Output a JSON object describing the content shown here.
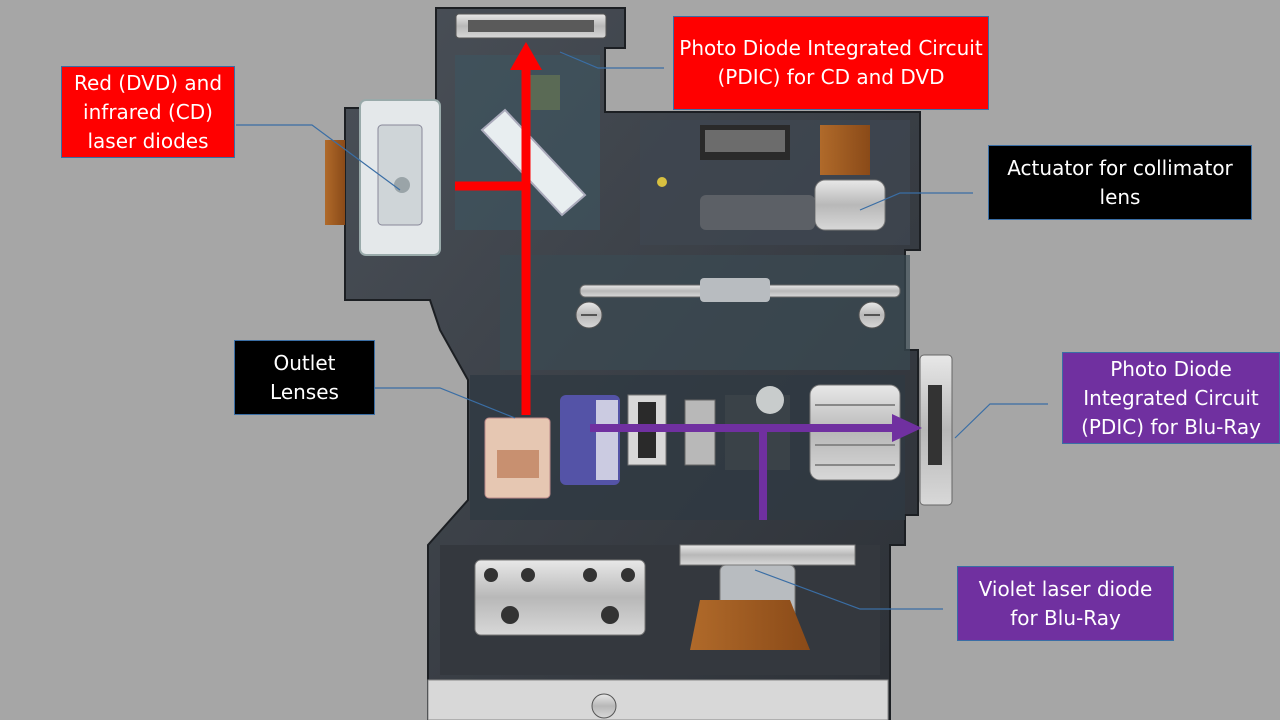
{
  "colors": {
    "background": "#a6a6a6",
    "red_label": "#ff0000",
    "purple_label": "#7030a0",
    "black_label": "#000000",
    "red_beam": "#ff0000",
    "violet_beam": "#7030a0",
    "leader_line": "#3a6ea5"
  },
  "labels": {
    "red_laser": "Red (DVD) and\ninfrared (CD)\nlaser diodes",
    "pdic_cd_dvd": "Photo Diode Integrated Circuit\n(PDIC) for CD and DVD",
    "actuator": "Actuator for collimator\nlens",
    "outlet_lenses": "Outlet\nLenses",
    "pdic_bluray": "Photo Diode\nIntegrated Circuit\n(PDIC) for Blu-Ray",
    "violet_laser": "Violet laser diode\nfor Blu-Ray"
  },
  "diagram": {
    "subject": "optical pickup unit photo",
    "beams": [
      "red-beam-cd-dvd",
      "violet-beam-bluray"
    ]
  }
}
